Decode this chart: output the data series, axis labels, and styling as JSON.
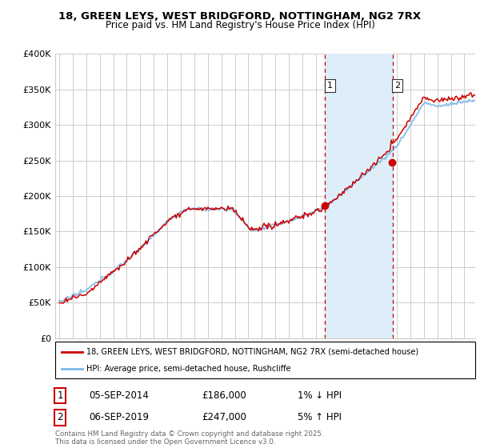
{
  "title_line1": "18, GREEN LEYS, WEST BRIDGFORD, NOTTINGHAM, NG2 7RX",
  "title_line2": "Price paid vs. HM Land Registry's House Price Index (HPI)",
  "ylabel_ticks": [
    "£0",
    "£50K",
    "£100K",
    "£150K",
    "£200K",
    "£250K",
    "£300K",
    "£350K",
    "£400K"
  ],
  "ylim": [
    0,
    400000
  ],
  "xlim_start": 1994.7,
  "xlim_end": 2025.8,
  "sale1_date": 2014.68,
  "sale1_price": 186000,
  "sale1_label": "1",
  "sale2_date": 2019.68,
  "sale2_price": 247000,
  "sale2_label": "2",
  "sale1_date_str": "05-SEP-2014",
  "sale1_price_str": "£186,000",
  "sale1_change_str": "1% ↓ HPI",
  "sale2_date_str": "06-SEP-2019",
  "sale2_price_str": "£247,000",
  "sale2_change_str": "5% ↑ HPI",
  "legend_line1": "18, GREEN LEYS, WEST BRIDGFORD, NOTTINGHAM, NG2 7RX (semi-detached house)",
  "legend_line2": "HPI: Average price, semi-detached house, Rushcliffe",
  "footer": "Contains HM Land Registry data © Crown copyright and database right 2025.\nThis data is licensed under the Open Government Licence v3.0.",
  "hpi_color": "#7ab8e8",
  "price_color": "#cc0000",
  "shaded_color": "#deeef8",
  "vline_color": "#cc0000",
  "grid_color": "#cccccc",
  "bg_color": "#ffffff",
  "box_border_color": "#cc0000"
}
